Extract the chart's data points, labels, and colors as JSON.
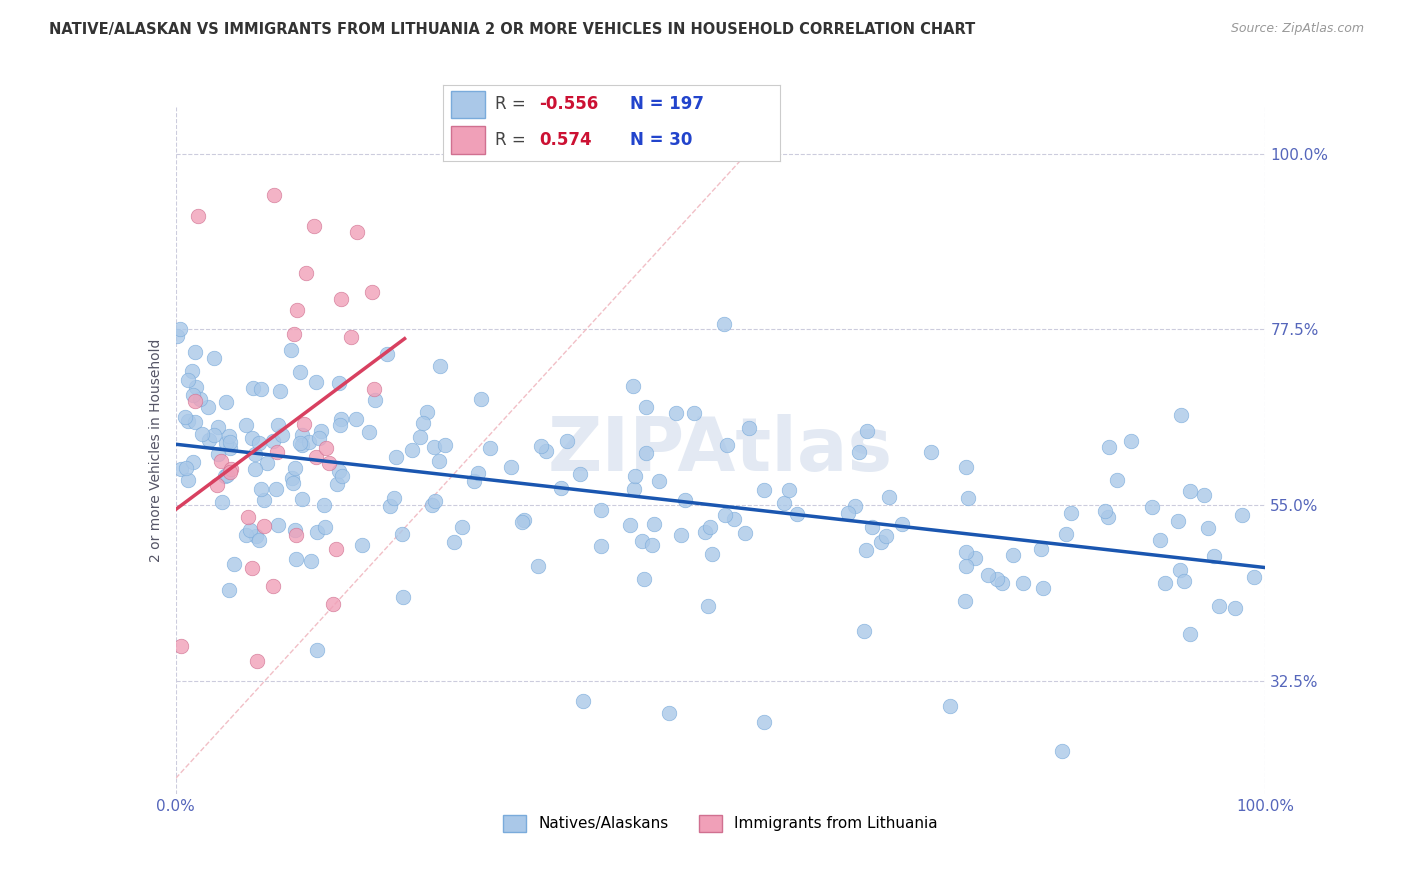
{
  "title": "NATIVE/ALASKAN VS IMMIGRANTS FROM LITHUANIA 2 OR MORE VEHICLES IN HOUSEHOLD CORRELATION CHART",
  "source": "Source: ZipAtlas.com",
  "ylabel": "2 or more Vehicles in Household",
  "ytick_labels": [
    "100.0%",
    "77.5%",
    "55.0%",
    "32.5%"
  ],
  "ytick_values": [
    1.0,
    0.775,
    0.55,
    0.325
  ],
  "xlim": [
    0.0,
    1.0
  ],
  "ylim": [
    0.18,
    1.06
  ],
  "blue_R": -0.556,
  "blue_N": 197,
  "pink_R": 0.574,
  "pink_N": 30,
  "blue_color": "#aac8e8",
  "pink_color": "#f0a0b8",
  "blue_line_color": "#1a56b0",
  "pink_line_color": "#d84060",
  "diagonal_color": "#f0b8c0",
  "background_color": "#ffffff",
  "watermark": "ZIPAtlas",
  "legend_blue_label": "Natives/Alaskans",
  "legend_pink_label": "Immigrants from Lithuania",
  "seed": 42
}
